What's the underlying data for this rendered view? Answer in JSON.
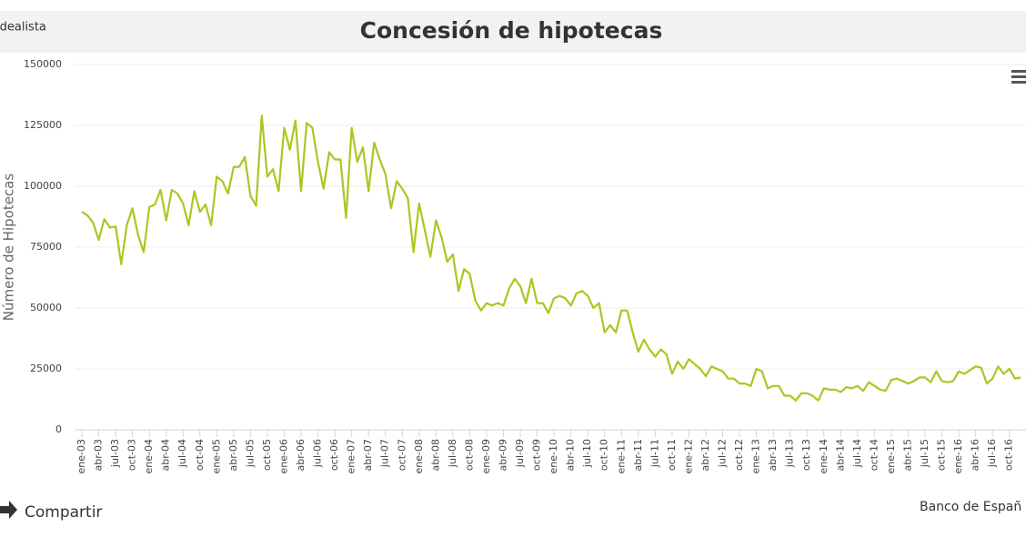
{
  "chart_data": {
    "type": "line",
    "title": "Concesión de hipotecas",
    "brand": "idealista",
    "y_label": "Número de Hipotecas",
    "share": "Compartir",
    "source": "Banco de Españ",
    "categories": [
      "ene-03",
      null,
      null,
      "abr-03",
      null,
      null,
      "jul-03",
      null,
      null,
      "oct-03",
      null,
      null,
      "ene-04",
      null,
      null,
      "abr-04",
      null,
      null,
      "jul-04",
      null,
      null,
      "oct-04",
      null,
      null,
      "ene-05",
      null,
      null,
      "abr-05",
      null,
      null,
      "jul-05",
      null,
      null,
      "oct-05",
      null,
      null,
      "ene-06",
      null,
      null,
      "abr-06",
      null,
      null,
      "jul-06",
      null,
      null,
      "oct-06",
      null,
      null,
      "ene-07",
      null,
      null,
      "abr-07",
      null,
      null,
      "jul-07",
      null,
      null,
      "oct-07",
      null,
      null,
      "ene-08",
      null,
      null,
      "abr-08",
      null,
      null,
      "jul-08",
      null,
      null,
      "oct-08",
      null,
      null,
      "ene-09",
      null,
      null,
      "abr-09",
      null,
      null,
      "jul-09",
      null,
      null,
      "oct-09",
      null,
      null,
      "ene-10",
      null,
      null,
      "abr-10",
      null,
      null,
      "jul-10",
      null,
      null,
      "oct-10",
      null,
      null,
      "ene-11",
      null,
      null,
      "abr-11",
      null,
      null,
      "jul-11",
      null,
      null,
      "oct-11",
      null,
      null,
      "ene-12",
      null,
      null,
      "abr-12",
      null,
      null,
      "jul-12",
      null,
      null,
      "oct-12",
      null,
      null,
      "ene-13",
      null,
      null,
      "abr-13",
      null,
      null,
      "jul-13",
      null,
      null,
      "oct-13",
      null,
      null,
      "ene-14",
      null,
      null,
      "abr-14",
      null,
      null,
      "jul-14",
      null,
      null,
      "oct-14",
      null,
      null,
      "ene-15",
      null,
      null,
      "abr-15",
      null,
      null,
      "jul-15",
      null,
      null,
      "oct-15",
      null,
      null,
      "ene-16",
      null,
      null,
      "abr-16",
      null,
      null,
      "jul-16",
      null,
      null,
      "oct-16",
      null,
      null
    ],
    "series": [
      {
        "name": "Número de Hipotecas",
        "color": "#a8c820",
        "values": [
          89500,
          88000,
          85000,
          78000,
          86500,
          83000,
          83500,
          68000,
          84000,
          91000,
          80000,
          73000,
          91500,
          92500,
          98500,
          86000,
          98500,
          97000,
          93000,
          84000,
          98000,
          89500,
          92500,
          84000,
          104000,
          102000,
          97000,
          108000,
          108000,
          112000,
          96000,
          92000,
          129000,
          104000,
          107000,
          98000,
          124000,
          115000,
          127000,
          98000,
          126000,
          124000,
          110000,
          99000,
          114000,
          111000,
          111000,
          87000,
          124000,
          110000,
          116000,
          98000,
          118000,
          111000,
          105000,
          91000,
          102000,
          99000,
          95000,
          73000,
          93000,
          82000,
          71000,
          86000,
          79000,
          69000,
          72000,
          57000,
          66000,
          64000,
          53000,
          49000,
          52000,
          51000,
          52000,
          51000,
          58000,
          62000,
          59000,
          52000,
          62000,
          52000,
          52000,
          48000,
          54000,
          55000,
          54000,
          51000,
          56000,
          57000,
          55000,
          50000,
          52000,
          40000,
          43000,
          40000,
          49000,
          49000,
          40000,
          32000,
          37000,
          33000,
          30000,
          33000,
          31000,
          23000,
          28000,
          25000,
          29000,
          27000,
          25000,
          22000,
          26000,
          25000,
          24000,
          21000,
          21000,
          19000,
          19000,
          18000,
          25000,
          24000,
          17000,
          18000,
          18000,
          14000,
          14000,
          12000,
          15000,
          15000,
          14000,
          12000,
          17000,
          16500,
          16500,
          15500,
          17500,
          17000,
          18000,
          16000,
          19500,
          18000,
          16500,
          16000,
          20500,
          21000,
          20000,
          19000,
          20000,
          21500,
          21500,
          19500,
          24000,
          20000,
          19500,
          20000,
          24000,
          23000,
          24500,
          26000,
          25500,
          19000,
          21000,
          26000,
          23000,
          25000,
          21000,
          21500
        ]
      }
    ],
    "ylim": [
      0,
      150000
    ],
    "yticks": [
      0,
      25000,
      50000,
      75000,
      100000,
      125000,
      150000
    ],
    "grid": true
  }
}
